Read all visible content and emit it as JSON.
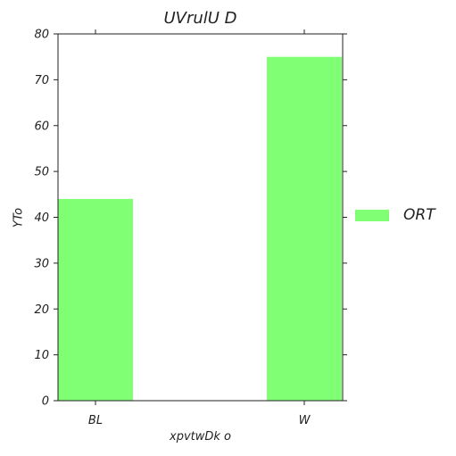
{
  "chart_data": {
    "type": "bar",
    "title": "UVrulU D",
    "xlabel": "xpvtwDk  o",
    "ylabel": "YTo",
    "categories": [
      "BL",
      "W"
    ],
    "series": [
      {
        "name": "ORT",
        "values": [
          44,
          75
        ],
        "color": "#80ff75"
      }
    ],
    "ylim": [
      0,
      80
    ],
    "yticks": [
      0,
      10,
      20,
      30,
      40,
      50,
      60,
      70,
      80
    ],
    "grid": false,
    "legend": "right"
  }
}
